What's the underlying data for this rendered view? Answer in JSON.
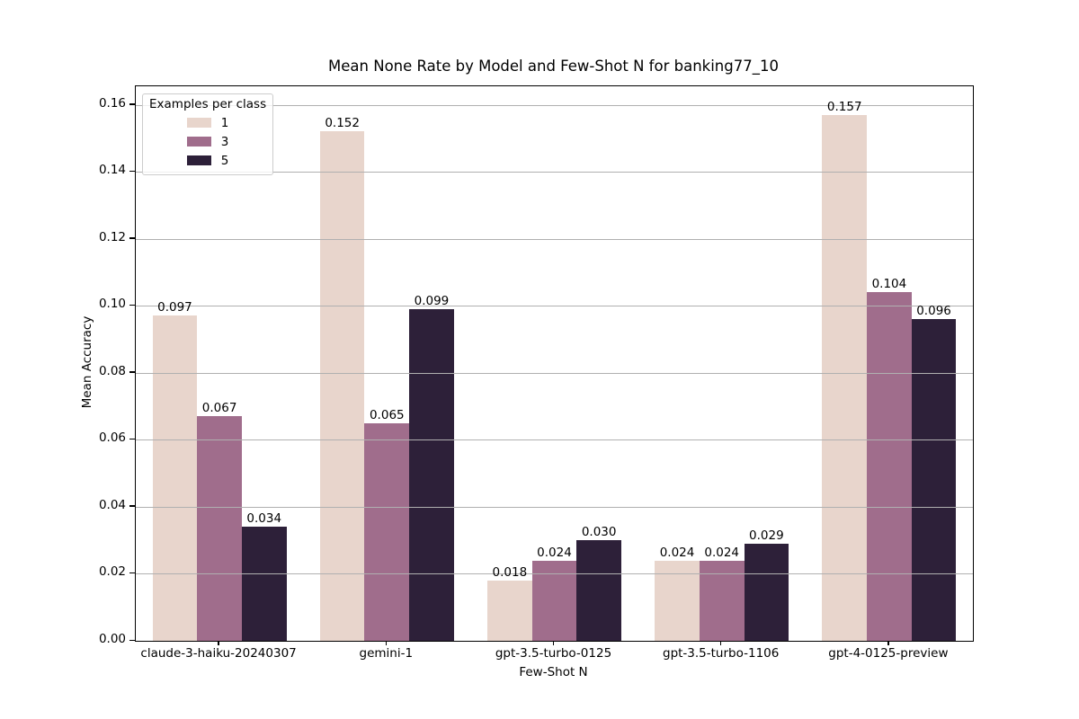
{
  "chart_data": {
    "type": "bar",
    "title": "Mean None Rate by Model and Few-Shot N for banking77_10",
    "xlabel": "Few-Shot N",
    "ylabel": "Mean Accuracy",
    "categories": [
      "claude-3-haiku-20240307",
      "gemini-1",
      "gpt-3.5-turbo-0125",
      "gpt-3.5-turbo-1106",
      "gpt-4-0125-preview"
    ],
    "series": [
      {
        "name": "1",
        "color": "#e8d5cc",
        "values": [
          0.097,
          0.152,
          0.018,
          0.024,
          0.157
        ],
        "labels": [
          "0.097",
          "0.152",
          "0.018",
          "0.024",
          "0.157"
        ]
      },
      {
        "name": "3",
        "color": "#a06d8c",
        "values": [
          0.067,
          0.065,
          0.024,
          0.024,
          0.104
        ],
        "labels": [
          "0.067",
          "0.065",
          "0.024",
          "0.024",
          "0.104"
        ]
      },
      {
        "name": "5",
        "color": "#2d2039",
        "values": [
          0.034,
          0.099,
          0.03,
          0.029,
          0.096
        ],
        "labels": [
          "0.034",
          "0.099",
          "0.030",
          "0.029",
          "0.096"
        ]
      }
    ],
    "ytick_values": [
      0.0,
      0.02,
      0.04,
      0.06,
      0.08,
      0.1,
      0.12,
      0.14,
      0.16
    ],
    "ytick_labels": [
      "0.00",
      "0.02",
      "0.04",
      "0.06",
      "0.08",
      "0.10",
      "0.12",
      "0.14",
      "0.16"
    ],
    "ylim": [
      0,
      0.1655
    ],
    "grid": "horizontal",
    "group_width_fraction": 0.8,
    "legend": {
      "title": "Examples per class",
      "position": "upper left"
    },
    "colors": {
      "grid": "#b0b0b0",
      "spine": "#000000",
      "background": "#ffffff",
      "legend_border": "#cccccc"
    }
  }
}
